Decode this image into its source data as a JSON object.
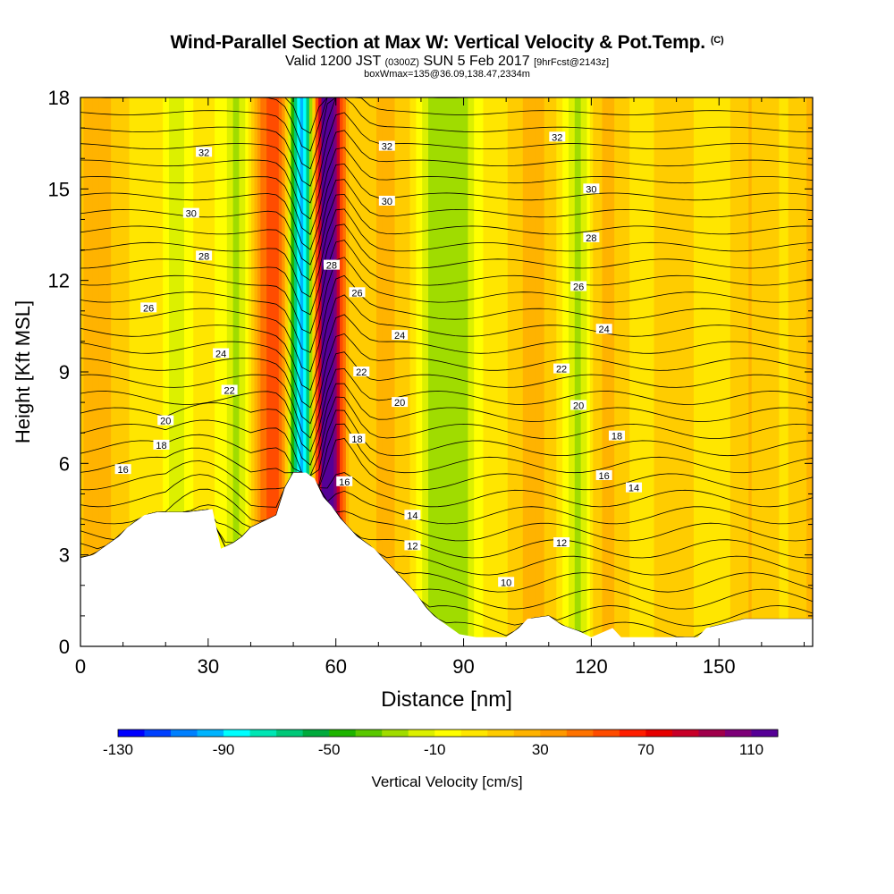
{
  "title": "Wind-Parallel Section at Max W: Vertical Velocity & Pot.Temp.",
  "title_mark": "(C)",
  "subtitle": {
    "valid": "Valid 1200 JST",
    "utc": "(0300Z)",
    "date": "SUN 5 Feb 2017",
    "fcst": "[9hrFcst@2143z]"
  },
  "subtitle2": "boxWmax=135@36.09,138.47,2334m",
  "chart_data": {
    "type": "heatmap",
    "xlabel": "Distance [nm]",
    "ylabel": "Height [Kft MSL]",
    "xlim": [
      0,
      172
    ],
    "ylim": [
      0,
      18
    ],
    "xticks": [
      0,
      30,
      60,
      90,
      120,
      150
    ],
    "yticks": [
      0,
      3,
      6,
      9,
      12,
      15,
      18
    ],
    "colorbar": {
      "label": "Vertical Velocity [cm/s]",
      "tick_labels": [
        -130,
        -90,
        -50,
        -10,
        30,
        70,
        110
      ],
      "levels": [
        -130,
        -120,
        -110,
        -100,
        -90,
        -80,
        -70,
        -60,
        -50,
        -40,
        -30,
        -20,
        -10,
        0,
        10,
        20,
        30,
        40,
        50,
        60,
        70,
        80,
        90,
        100,
        110,
        120
      ],
      "colors": [
        "#0000ff",
        "#0040ff",
        "#0080ff",
        "#00b4ff",
        "#00ffff",
        "#00e6b4",
        "#00c878",
        "#00aa3c",
        "#1eb400",
        "#5ac800",
        "#a0dc00",
        "#dcf000",
        "#ffff00",
        "#ffe600",
        "#ffcc00",
        "#ffb300",
        "#ff9900",
        "#ff7300",
        "#ff4c00",
        "#ff1e00",
        "#e60000",
        "#c80028",
        "#a0004b",
        "#7d0078",
        "#550096"
      ]
    },
    "features": [
      {
        "x": 52,
        "value": -125,
        "note": "downdraft"
      },
      {
        "x": 58,
        "value": 115,
        "note": "updraft"
      },
      {
        "x": 46,
        "value": 70
      },
      {
        "x": 22,
        "value": -20
      },
      {
        "x": 37,
        "value": -25
      },
      {
        "x": 84,
        "value": -20
      },
      {
        "x": 117,
        "value": -20
      },
      {
        "x": 90,
        "value": -25
      }
    ],
    "isentropes": [
      {
        "label": "10",
        "x": 100,
        "y": 2.1
      },
      {
        "label": "12",
        "x": 78,
        "y": 3.3
      },
      {
        "label": "12",
        "x": 113,
        "y": 3.4
      },
      {
        "label": "14",
        "x": 78,
        "y": 4.3
      },
      {
        "label": "14",
        "x": 130,
        "y": 5.2
      },
      {
        "label": "16",
        "x": 10,
        "y": 5.8
      },
      {
        "label": "16",
        "x": 62,
        "y": 5.4
      },
      {
        "label": "16",
        "x": 123,
        "y": 5.6
      },
      {
        "label": "18",
        "x": 19,
        "y": 6.6
      },
      {
        "label": "18",
        "x": 65,
        "y": 6.8
      },
      {
        "label": "18",
        "x": 126,
        "y": 6.9
      },
      {
        "label": "20",
        "x": 20,
        "y": 7.4
      },
      {
        "label": "20",
        "x": 75,
        "y": 8.0
      },
      {
        "label": "20",
        "x": 117,
        "y": 7.9
      },
      {
        "label": "22",
        "x": 35,
        "y": 8.4
      },
      {
        "label": "22",
        "x": 66,
        "y": 9.0
      },
      {
        "label": "22",
        "x": 113,
        "y": 9.1
      },
      {
        "label": "24",
        "x": 33,
        "y": 9.6
      },
      {
        "label": "24",
        "x": 75,
        "y": 10.2
      },
      {
        "label": "24",
        "x": 123,
        "y": 10.4
      },
      {
        "label": "26",
        "x": 16,
        "y": 11.1
      },
      {
        "label": "26",
        "x": 65,
        "y": 11.6
      },
      {
        "label": "26",
        "x": 117,
        "y": 11.8
      },
      {
        "label": "28",
        "x": 29,
        "y": 12.8
      },
      {
        "label": "28",
        "x": 59,
        "y": 12.5
      },
      {
        "label": "28",
        "x": 120,
        "y": 13.4
      },
      {
        "label": "30",
        "x": 26,
        "y": 14.2
      },
      {
        "label": "30",
        "x": 72,
        "y": 14.6
      },
      {
        "label": "30",
        "x": 120,
        "y": 15.0
      },
      {
        "label": "32",
        "x": 29,
        "y": 16.2
      },
      {
        "label": "32",
        "x": 72,
        "y": 16.4
      },
      {
        "label": "32",
        "x": 112,
        "y": 16.7
      }
    ],
    "terrain": [
      [
        0,
        2.9
      ],
      [
        3,
        3.0
      ],
      [
        5,
        3.2
      ],
      [
        7,
        3.4
      ],
      [
        9,
        3.6
      ],
      [
        11,
        3.9
      ],
      [
        13,
        4.1
      ],
      [
        15,
        4.3
      ],
      [
        18,
        4.4
      ],
      [
        25,
        4.4
      ],
      [
        31,
        4.5
      ],
      [
        33,
        3.2
      ],
      [
        36,
        3.4
      ],
      [
        38,
        3.6
      ],
      [
        40,
        3.9
      ],
      [
        43,
        4.1
      ],
      [
        46,
        4.3
      ],
      [
        48,
        5.2
      ],
      [
        50,
        5.7
      ],
      [
        53,
        5.7
      ],
      [
        55,
        5.5
      ],
      [
        57,
        4.9
      ],
      [
        59,
        4.6
      ],
      [
        61,
        4.2
      ],
      [
        63,
        3.9
      ],
      [
        65,
        3.6
      ],
      [
        67,
        3.4
      ],
      [
        69,
        3.2
      ],
      [
        71,
        2.9
      ],
      [
        73,
        2.6
      ],
      [
        75,
        2.3
      ],
      [
        77,
        2.0
      ],
      [
        79,
        1.7
      ],
      [
        81,
        1.3
      ],
      [
        83,
        1.0
      ],
      [
        85,
        0.8
      ],
      [
        87,
        0.6
      ],
      [
        89,
        0.4
      ],
      [
        93,
        0.3
      ],
      [
        100,
        0.3
      ],
      [
        103,
        0.6
      ],
      [
        105,
        0.9
      ],
      [
        110,
        1.0
      ],
      [
        113,
        0.7
      ],
      [
        117,
        0.5
      ],
      [
        120,
        0.3
      ],
      [
        125,
        0.6
      ],
      [
        127,
        0.3
      ],
      [
        145,
        0.3
      ],
      [
        147,
        0.6
      ],
      [
        156,
        0.9
      ],
      [
        172,
        0.9
      ]
    ]
  }
}
